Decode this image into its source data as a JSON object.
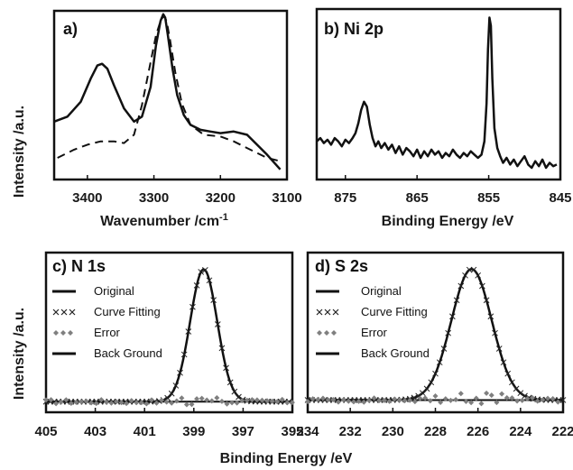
{
  "figure": {
    "ylabel": "Intensity /a.u.",
    "colors": {
      "line": "#111111",
      "error": "#7f7f7f"
    }
  },
  "chart_data": [
    {
      "id": "a",
      "type": "line",
      "panel_label": "a)",
      "xlabel": "Wavenumber /cm",
      "xlabel_sup": "-1",
      "ylabel": "Intensity /a.u.",
      "xlim": [
        3450,
        3100
      ],
      "ylim": [
        0,
        1
      ],
      "xticks": [
        3400,
        3300,
        3200,
        3100
      ],
      "series": [
        {
          "style": "solid",
          "x": [
            3450,
            3430,
            3410,
            3395,
            3385,
            3378,
            3370,
            3360,
            3345,
            3330,
            3318,
            3305,
            3297,
            3290,
            3286,
            3283,
            3279,
            3272,
            3265,
            3255,
            3245,
            3230,
            3215,
            3200,
            3180,
            3160,
            3130,
            3110
          ],
          "y": [
            0.34,
            0.37,
            0.46,
            0.6,
            0.68,
            0.69,
            0.66,
            0.56,
            0.42,
            0.34,
            0.37,
            0.55,
            0.8,
            0.95,
            0.99,
            0.97,
            0.86,
            0.66,
            0.5,
            0.38,
            0.32,
            0.29,
            0.28,
            0.27,
            0.28,
            0.26,
            0.14,
            0.05
          ]
        },
        {
          "style": "dashed",
          "x": [
            3445,
            3420,
            3400,
            3380,
            3360,
            3345,
            3330,
            3318,
            3305,
            3297,
            3290,
            3285,
            3281,
            3276,
            3268,
            3258,
            3245,
            3225,
            3200,
            3180,
            3160,
            3130,
            3110
          ],
          "y": [
            0.12,
            0.17,
            0.2,
            0.22,
            0.22,
            0.21,
            0.26,
            0.44,
            0.7,
            0.86,
            0.95,
            0.98,
            0.95,
            0.84,
            0.64,
            0.45,
            0.32,
            0.26,
            0.25,
            0.22,
            0.18,
            0.12,
            0.1
          ]
        }
      ]
    },
    {
      "id": "b",
      "type": "line",
      "panel_label": "b) Ni 2p",
      "xlabel": "Binding Energy /eV",
      "xlim": [
        879,
        845
      ],
      "ylim": [
        0,
        1
      ],
      "xticks": [
        875,
        865,
        855,
        845
      ],
      "series": [
        {
          "style": "solid",
          "x": [
            879,
            878.5,
            878,
            877.5,
            877,
            876.5,
            876,
            875.5,
            875,
            874.5,
            874,
            873.6,
            873.2,
            872.8,
            872.4,
            872,
            871.6,
            871.2,
            870.8,
            870.4,
            870,
            869.5,
            869,
            868.5,
            868,
            867.5,
            867,
            866.5,
            866,
            865.5,
            865,
            864.5,
            864,
            863.5,
            863,
            862.5,
            862,
            861.5,
            861,
            860.5,
            860,
            859.5,
            859,
            858.5,
            858,
            857.5,
            857,
            856.5,
            856,
            855.6,
            855.3,
            855.1,
            854.9,
            854.7,
            854.5,
            854.2,
            853.8,
            853.4,
            853,
            852.5,
            852,
            851.5,
            851,
            850.5,
            850,
            849.5,
            849,
            848.5,
            848,
            847.5,
            847,
            846.5,
            846,
            845.5
          ],
          "y": [
            0.22,
            0.24,
            0.21,
            0.23,
            0.2,
            0.24,
            0.22,
            0.19,
            0.23,
            0.21,
            0.24,
            0.27,
            0.33,
            0.41,
            0.46,
            0.43,
            0.32,
            0.24,
            0.19,
            0.22,
            0.18,
            0.21,
            0.17,
            0.2,
            0.15,
            0.19,
            0.14,
            0.18,
            0.16,
            0.13,
            0.17,
            0.12,
            0.16,
            0.13,
            0.17,
            0.14,
            0.16,
            0.12,
            0.15,
            0.13,
            0.17,
            0.14,
            0.12,
            0.15,
            0.13,
            0.16,
            0.14,
            0.12,
            0.14,
            0.22,
            0.45,
            0.78,
            0.97,
            0.92,
            0.6,
            0.3,
            0.18,
            0.13,
            0.09,
            0.12,
            0.08,
            0.11,
            0.07,
            0.1,
            0.13,
            0.08,
            0.06,
            0.1,
            0.07,
            0.11,
            0.06,
            0.09,
            0.07,
            0.08
          ]
        }
      ]
    },
    {
      "id": "c",
      "type": "line",
      "panel_label": "c) N 1s",
      "xlabel": "Binding Energy /eV",
      "ylabel": "Intensity /a.u.",
      "xlim": [
        405,
        395
      ],
      "ylim": [
        0,
        1
      ],
      "xticks": [
        405,
        403,
        401,
        399,
        397,
        395
      ],
      "legend": [
        "Original",
        "Curve Fitting",
        "Error",
        "Back Ground"
      ],
      "peak_center": 398.6,
      "peak_height": 0.96,
      "peak_width": 0.55,
      "background": 0.06
    },
    {
      "id": "d",
      "type": "line",
      "panel_label": "d) S 2s",
      "xlabel": "Binding Energy /eV",
      "xlim": [
        234,
        222
      ],
      "ylim": [
        0,
        1
      ],
      "xticks": [
        234,
        232,
        230,
        228,
        226,
        224,
        222
      ],
      "legend": [
        "Original",
        "Curve Fitting",
        "Error",
        "Back Ground"
      ],
      "peak_center": 226.3,
      "peak_height": 0.95,
      "peak_width": 0.95,
      "background": 0.07
    }
  ]
}
